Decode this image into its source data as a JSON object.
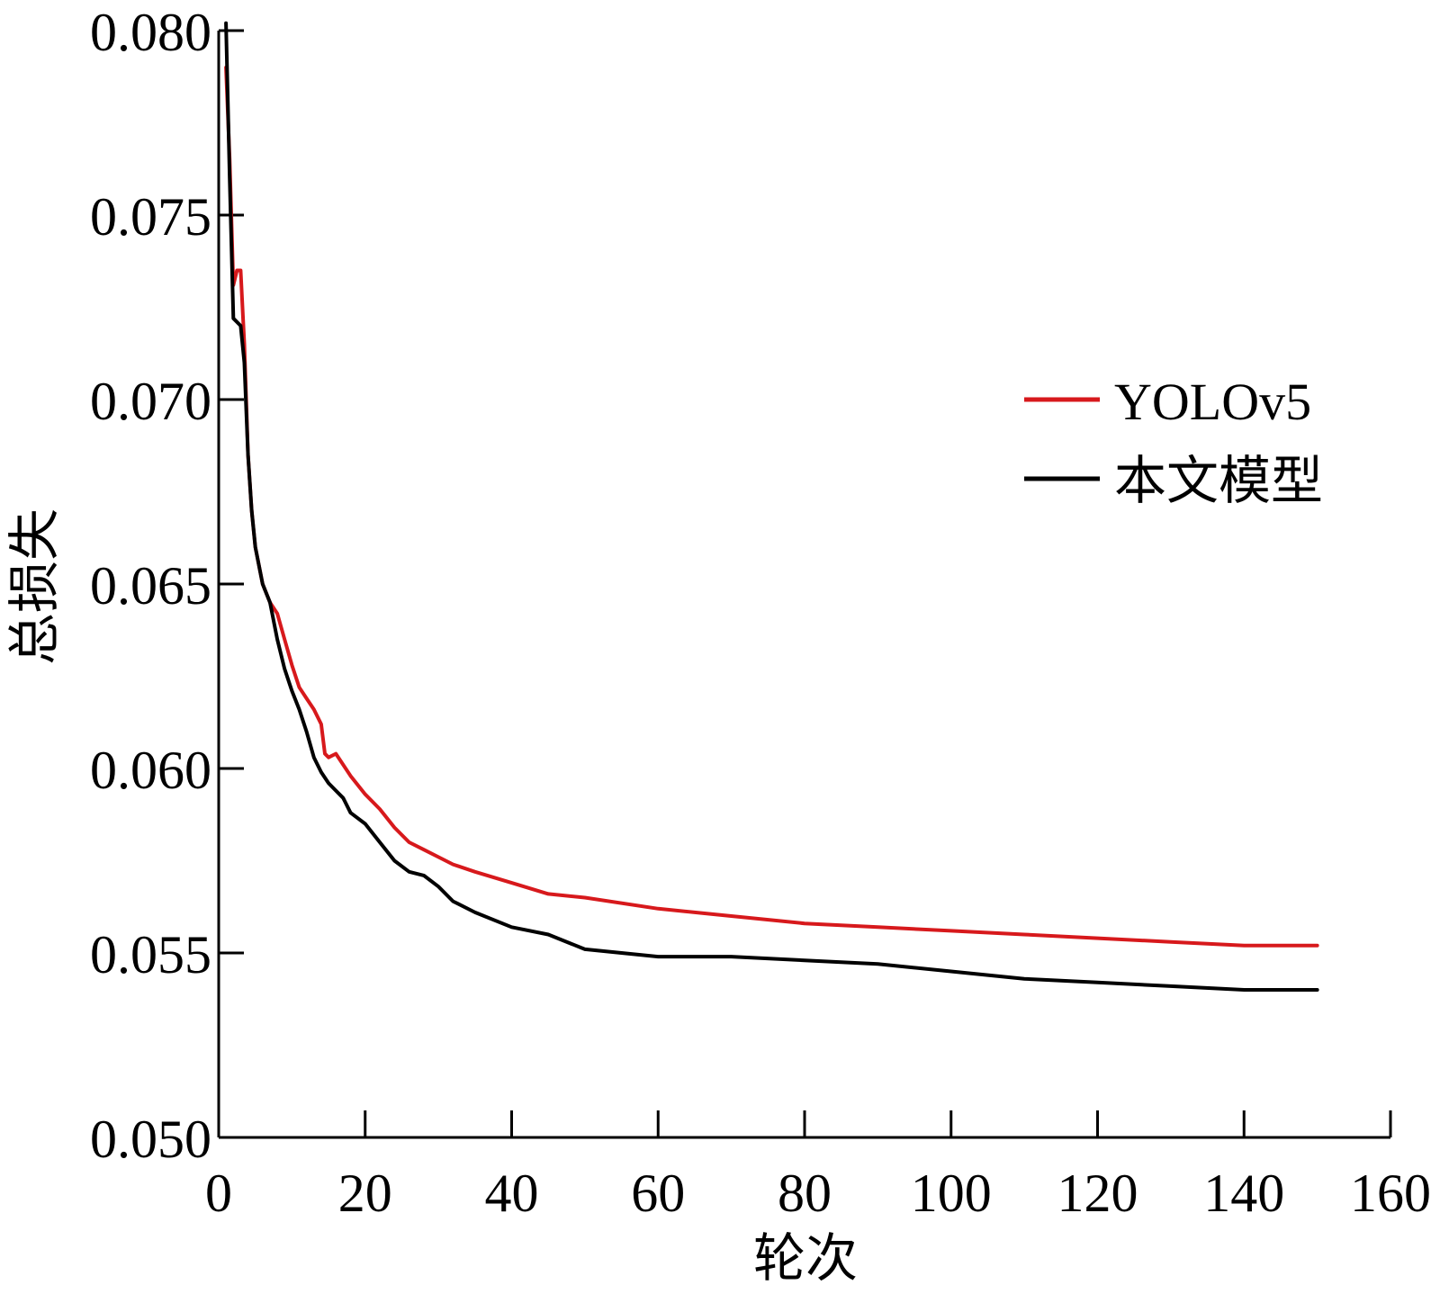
{
  "chart_data": {
    "type": "line",
    "title": "",
    "xlabel": "轮次",
    "ylabel": "总损失",
    "xlim": [
      0,
      160
    ],
    "ylim": [
      0.05,
      0.08
    ],
    "xticks": [
      "0",
      "20",
      "40",
      "60",
      "80",
      "100",
      "120",
      "140",
      "160"
    ],
    "yticks": [
      "0.050",
      "0.055",
      "0.060",
      "0.065",
      "0.070",
      "0.075",
      "0.080"
    ],
    "grid": false,
    "legend_position": "right",
    "series": [
      {
        "name": "YOLOv5",
        "color": "#d7191c",
        "x": [
          1,
          1.5,
          2,
          2.5,
          3,
          3.5,
          4,
          4.5,
          5,
          6,
          7,
          8,
          9,
          10,
          11,
          12,
          13,
          14,
          14.5,
          15,
          16,
          18,
          20,
          22,
          24,
          26,
          28,
          30,
          32,
          35,
          40,
          45,
          50,
          60,
          70,
          80,
          90,
          100,
          110,
          120,
          130,
          140,
          150
        ],
        "y": [
          0.079,
          0.0765,
          0.0731,
          0.0735,
          0.0735,
          0.0715,
          0.0685,
          0.067,
          0.066,
          0.065,
          0.0645,
          0.0642,
          0.0635,
          0.0628,
          0.0622,
          0.0619,
          0.0616,
          0.0612,
          0.0604,
          0.0603,
          0.0604,
          0.0598,
          0.0593,
          0.0589,
          0.0584,
          0.058,
          0.0578,
          0.0576,
          0.0574,
          0.0572,
          0.0569,
          0.0566,
          0.0565,
          0.0562,
          0.056,
          0.0558,
          0.0557,
          0.0556,
          0.0555,
          0.0554,
          0.0553,
          0.0552,
          0.0552
        ]
      },
      {
        "name": "本文模型",
        "color": "#000000",
        "x": [
          1,
          1.5,
          2,
          3,
          3.5,
          4,
          4.5,
          5,
          6,
          7,
          8,
          9,
          10,
          11,
          12,
          13,
          14,
          15,
          16,
          17,
          18,
          20,
          22,
          24,
          26,
          28,
          30,
          32,
          35,
          40,
          45,
          50,
          55,
          60,
          70,
          80,
          90,
          100,
          110,
          120,
          130,
          140,
          150
        ],
        "y": [
          0.0802,
          0.076,
          0.0722,
          0.072,
          0.071,
          0.0685,
          0.067,
          0.066,
          0.065,
          0.0645,
          0.0635,
          0.0627,
          0.0621,
          0.0616,
          0.061,
          0.0603,
          0.0599,
          0.0596,
          0.0594,
          0.0592,
          0.0588,
          0.0585,
          0.058,
          0.0575,
          0.0572,
          0.0571,
          0.0568,
          0.0564,
          0.0561,
          0.0557,
          0.0555,
          0.0551,
          0.055,
          0.0549,
          0.0549,
          0.0548,
          0.0547,
          0.0545,
          0.0543,
          0.0542,
          0.0541,
          0.054,
          0.054
        ]
      }
    ]
  }
}
